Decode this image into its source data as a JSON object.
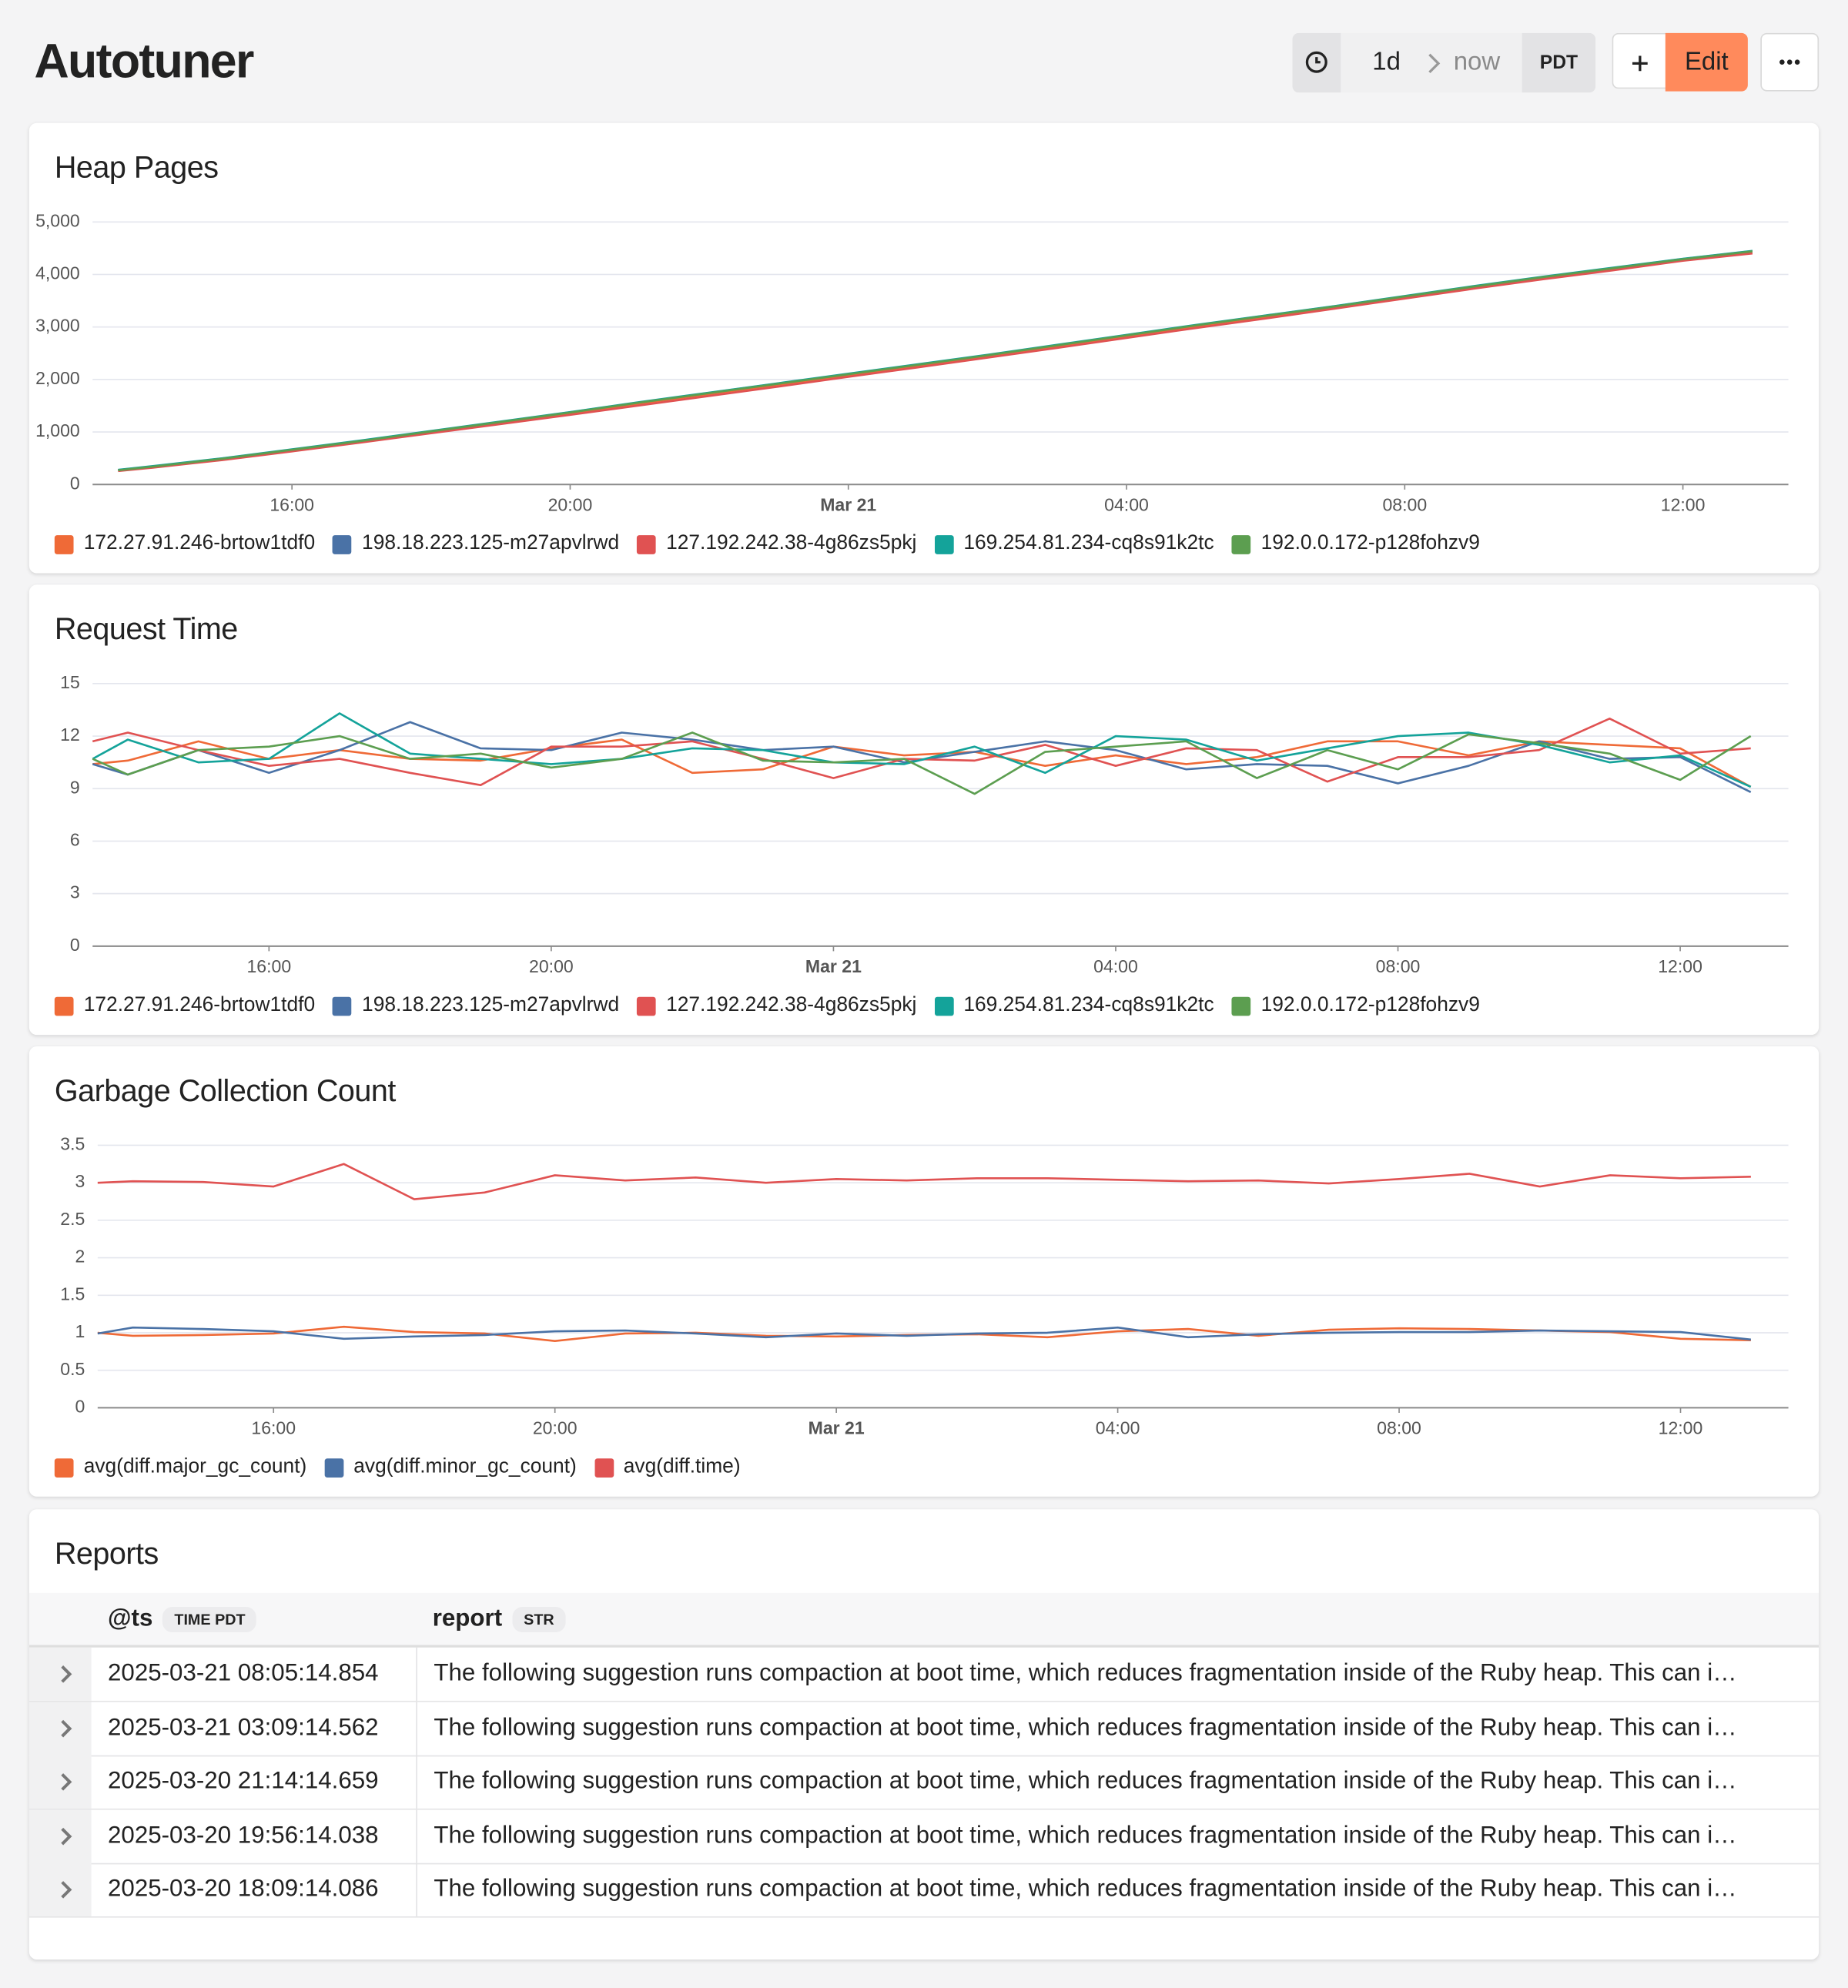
{
  "header": {
    "title": "Autotuner",
    "time_range": "1d",
    "time_end": "now",
    "timezone": "PDT",
    "edit": "Edit"
  },
  "chart_data": [
    {
      "type": "line",
      "title": "Heap Pages",
      "x": [
        "13:30",
        "14:00",
        "15:00",
        "16:00",
        "17:00",
        "18:00",
        "19:00",
        "20:00",
        "21:00",
        "22:00",
        "23:00",
        "00:00",
        "01:00",
        "02:00",
        "03:00",
        "04:00",
        "05:00",
        "06:00",
        "07:00",
        "08:00",
        "09:00",
        "10:00",
        "11:00",
        "12:00",
        "13:00"
      ],
      "xlim": [
        "13:08",
        "13:31"
      ],
      "xticks": [
        "16:00",
        "20:00",
        {
          "value": "00:00",
          "label": "Mar 21"
        },
        "04:00",
        "08:00",
        "12:00"
      ],
      "ylim": [
        0,
        5000
      ],
      "yticks": [
        0,
        {
          "value": 1000,
          "label": "1,000"
        },
        {
          "value": 2000,
          "label": "2,000"
        },
        {
          "value": 3000,
          "label": "3,000"
        },
        {
          "value": 4000,
          "label": "4,000"
        },
        {
          "value": 5000,
          "label": "5,000"
        }
      ],
      "grid": true,
      "series": [
        {
          "name": "172.27.91.246-brtow1tdf0",
          "color": "#ef6a37",
          "values": [
            260,
            330,
            480,
            650,
            825,
            1005,
            1180,
            1355,
            1540,
            1720,
            1900,
            2080,
            2260,
            2440,
            2630,
            2820,
            3010,
            3190,
            3370,
            3560,
            3750,
            3930,
            4100,
            4270,
            4410
          ]
        },
        {
          "name": "198.18.223.125-m27apvlrwd",
          "color": "#4a72a6",
          "values": [
            275,
            345,
            495,
            665,
            835,
            1015,
            1195,
            1375,
            1565,
            1745,
            1925,
            2105,
            2285,
            2465,
            2655,
            2845,
            3035,
            3215,
            3395,
            3585,
            3775,
            3955,
            4125,
            4295,
            4445
          ]
        },
        {
          "name": "127.192.242.38-4g86zs5pkj",
          "color": "#e05252",
          "values": [
            255,
            320,
            465,
            630,
            800,
            975,
            1150,
            1325,
            1505,
            1685,
            1865,
            2050,
            2230,
            2415,
            2600,
            2790,
            2980,
            3160,
            3350,
            3540,
            3730,
            3910,
            4080,
            4260,
            4400
          ]
        },
        {
          "name": "169.254.81.234-cq8s91k2tc",
          "color": "#14a39a",
          "values": [
            280,
            350,
            500,
            670,
            840,
            1020,
            1200,
            1380,
            1570,
            1750,
            1930,
            2110,
            2290,
            2470,
            2660,
            2850,
            3040,
            3220,
            3400,
            3590,
            3780,
            3960,
            4130,
            4300,
            4450
          ]
        },
        {
          "name": "192.0.0.172-p128fohzv9",
          "color": "#5c9e50",
          "values": [
            270,
            340,
            490,
            660,
            830,
            1010,
            1190,
            1370,
            1560,
            1740,
            1920,
            2100,
            2280,
            2460,
            2650,
            2840,
            3030,
            3210,
            3390,
            3580,
            3770,
            3950,
            4120,
            4290,
            4440
          ]
        }
      ]
    },
    {
      "type": "line",
      "title": "Request Time",
      "x": [
        "13:30",
        "14:00",
        "15:00",
        "16:00",
        "17:00",
        "18:00",
        "19:00",
        "20:00",
        "21:00",
        "22:00",
        "23:00",
        "00:00",
        "01:00",
        "02:00",
        "03:00",
        "04:00",
        "05:00",
        "06:00",
        "07:00",
        "08:00",
        "09:00",
        "10:00",
        "11:00",
        "12:00",
        "13:00"
      ],
      "xlim": [
        "13:30",
        "13:32"
      ],
      "xticks": [
        "16:00",
        "20:00",
        {
          "value": "00:00",
          "label": "Mar 21"
        },
        "04:00",
        "08:00",
        "12:00"
      ],
      "ylim": [
        0,
        15
      ],
      "yticks": [
        0,
        3,
        6,
        9,
        12,
        15
      ],
      "grid": true,
      "series": [
        {
          "name": "172.27.91.246-brtow1tdf0",
          "color": "#ef6a37",
          "values": [
            10.4,
            10.6,
            11.7,
            10.7,
            11.2,
            10.7,
            10.6,
            11.3,
            11.8,
            9.9,
            10.1,
            11.4,
            10.9,
            11.1,
            10.3,
            10.9,
            10.4,
            10.8,
            11.7,
            11.7,
            10.9,
            11.7,
            11.5,
            11.3,
            9.1
          ]
        },
        {
          "name": "198.18.223.125-m27apvlrwd",
          "color": "#4a72a6",
          "values": [
            10.4,
            9.8,
            11.2,
            9.9,
            11.2,
            12.8,
            11.3,
            11.2,
            12.2,
            11.8,
            11.2,
            11.4,
            10.5,
            11.1,
            11.7,
            11.2,
            10.1,
            10.4,
            10.3,
            9.3,
            10.3,
            11.7,
            10.7,
            10.8,
            8.8
          ]
        },
        {
          "name": "127.192.242.38-4g86zs5pkj",
          "color": "#e05252",
          "values": [
            11.7,
            12.2,
            11.2,
            10.3,
            10.7,
            9.9,
            9.2,
            11.4,
            11.4,
            11.7,
            10.7,
            9.6,
            10.7,
            10.6,
            11.5,
            10.3,
            11.3,
            11.2,
            9.4,
            10.8,
            10.8,
            11.2,
            13.0,
            11.0,
            11.3
          ]
        },
        {
          "name": "169.254.81.234-cq8s91k2tc",
          "color": "#14a39a",
          "values": [
            10.7,
            11.8,
            10.5,
            10.7,
            13.3,
            11.0,
            10.7,
            10.4,
            10.7,
            11.3,
            11.2,
            10.5,
            10.4,
            11.4,
            9.9,
            12.0,
            11.8,
            10.6,
            11.3,
            12.0,
            12.2,
            11.5,
            10.5,
            10.9,
            9.1
          ]
        },
        {
          "name": "192.0.0.172-p128fohzv9",
          "color": "#5c9e50",
          "values": [
            10.7,
            9.8,
            11.2,
            11.4,
            12.0,
            10.7,
            11.0,
            10.2,
            10.7,
            12.2,
            10.6,
            10.5,
            10.7,
            8.7,
            11.1,
            11.4,
            11.7,
            9.6,
            11.2,
            10.1,
            12.1,
            11.6,
            11.0,
            9.5,
            12.0
          ]
        }
      ]
    },
    {
      "type": "line",
      "title": "Garbage Collection Count",
      "x": [
        "13:30",
        "14:00",
        "15:00",
        "16:00",
        "17:00",
        "18:00",
        "19:00",
        "20:00",
        "21:00",
        "22:00",
        "23:00",
        "00:00",
        "01:00",
        "02:00",
        "03:00",
        "04:00",
        "05:00",
        "06:00",
        "07:00",
        "08:00",
        "09:00",
        "10:00",
        "11:00",
        "12:00",
        "13:00"
      ],
      "xlim": [
        "13:30",
        "13:32"
      ],
      "xticks": [
        "16:00",
        "20:00",
        {
          "value": "00:00",
          "label": "Mar 21"
        },
        "04:00",
        "08:00",
        "12:00"
      ],
      "ylim": [
        0,
        3.5
      ],
      "yticks": [
        0,
        0.5,
        1,
        1.5,
        2,
        2.5,
        3,
        3.5
      ],
      "grid": true,
      "series": [
        {
          "name": "avg(diff.major_gc_count)",
          "color": "#ef6a37",
          "values": [
            1.0,
            0.96,
            0.97,
            0.99,
            1.08,
            1.01,
            0.99,
            0.89,
            0.99,
            1.0,
            0.96,
            0.95,
            0.97,
            0.98,
            0.94,
            1.02,
            1.05,
            0.96,
            1.04,
            1.06,
            1.05,
            1.03,
            1.01,
            0.92,
            0.9
          ]
        },
        {
          "name": "avg(diff.minor_gc_count)",
          "color": "#4a72a6",
          "values": [
            0.99,
            1.07,
            1.05,
            1.02,
            0.92,
            0.95,
            0.97,
            1.02,
            1.03,
            0.99,
            0.94,
            0.99,
            0.96,
            0.99,
            1.0,
            1.07,
            0.94,
            0.98,
            1.0,
            1.01,
            1.01,
            1.03,
            1.02,
            1.01,
            0.91
          ]
        },
        {
          "name": "avg(diff.time)",
          "color": "#e05252",
          "values": [
            3.0,
            3.02,
            3.01,
            2.95,
            3.25,
            2.78,
            2.87,
            3.1,
            3.03,
            3.07,
            3.0,
            3.05,
            3.03,
            3.06,
            3.06,
            3.04,
            3.02,
            3.03,
            2.99,
            3.05,
            3.12,
            2.95,
            3.1,
            3.06,
            3.08
          ]
        }
      ]
    }
  ],
  "reports": {
    "title": "Reports",
    "columns": [
      {
        "name": "@ts",
        "type": "TIME PDT"
      },
      {
        "name": "report",
        "type": "STR"
      }
    ],
    "rows": [
      [
        "2025-03-21 08:05:14.854",
        "The following suggestion runs compaction at boot time, which reduces fragmentation inside of the Ruby heap. This can i…"
      ],
      [
        "2025-03-21 03:09:14.562",
        "The following suggestion runs compaction at boot time, which reduces fragmentation inside of the Ruby heap. This can i…"
      ],
      [
        "2025-03-20 21:14:14.659",
        "The following suggestion runs compaction at boot time, which reduces fragmentation inside of the Ruby heap. This can i…"
      ],
      [
        "2025-03-20 19:56:14.038",
        "The following suggestion runs compaction at boot time, which reduces fragmentation inside of the Ruby heap. This can i…"
      ],
      [
        "2025-03-20 18:09:14.086",
        "The following suggestion runs compaction at boot time, which reduces fragmentation inside of the Ruby heap. This can i…"
      ]
    ]
  }
}
